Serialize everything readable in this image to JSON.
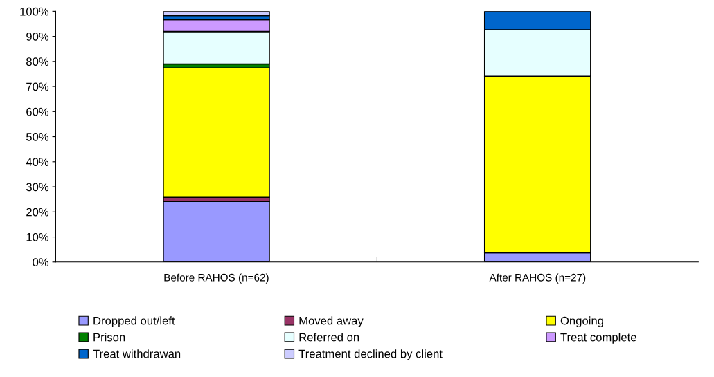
{
  "chart_data": {
    "type": "bar",
    "stacked": true,
    "categories": [
      "Before RAHOS (n=62)",
      "After RAHOS (n=27)"
    ],
    "series": [
      {
        "name": "Dropped out/left",
        "color": "#9999ff",
        "values": [
          24.2,
          3.7
        ]
      },
      {
        "name": "Moved away",
        "color": "#993366",
        "values": [
          1.6,
          null
        ]
      },
      {
        "name": "Ongoing",
        "color": "#ffff00",
        "values": [
          51.6,
          70.4
        ]
      },
      {
        "name": "Prison",
        "color": "#008000",
        "values": [
          1.6,
          null
        ]
      },
      {
        "name": "Referred on",
        "color": "#e6ffff",
        "values": [
          12.9,
          18.5
        ]
      },
      {
        "name": "Treat complete",
        "color": "#cc99ff",
        "values": [
          4.8,
          null
        ]
      },
      {
        "name": "Treat withdrawan",
        "color": "#0066cc",
        "values": [
          1.6,
          7.4
        ]
      },
      {
        "name": "Treatment declined by client",
        "color": "#ccccff",
        "values": [
          1.6,
          null
        ]
      }
    ],
    "ylim": [
      0,
      100
    ],
    "yticks": [
      {
        "value": 0,
        "label": "0%"
      },
      {
        "value": 10,
        "label": "10%"
      },
      {
        "value": 20,
        "label": "20%"
      },
      {
        "value": 30,
        "label": "30%"
      },
      {
        "value": 40,
        "label": "40%"
      },
      {
        "value": 50,
        "label": "50%"
      },
      {
        "value": 60,
        "label": "60%"
      },
      {
        "value": 70,
        "label": "70%"
      },
      {
        "value": 80,
        "label": "80%"
      },
      {
        "value": 90,
        "label": "90%"
      },
      {
        "value": 100,
        "label": "100%"
      }
    ],
    "grid": false,
    "legend": "bottom"
  }
}
